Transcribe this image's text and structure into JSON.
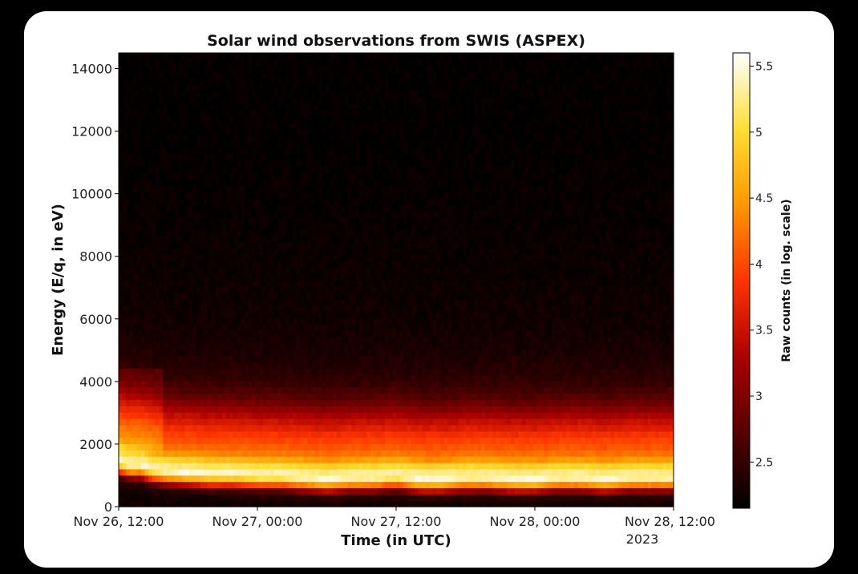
{
  "chart_data": {
    "type": "heatmap",
    "title": "Solar wind observations from SWIS (ASPEX)",
    "xlabel": "Time (in UTC)",
    "ylabel": "Energy (E/q, in eV)",
    "x_tick_labels": [
      "Nov 26, 12:00",
      "Nov 27, 00:00",
      "Nov 27, 12:00",
      "Nov 28, 00:00",
      "Nov 28, 12:00"
    ],
    "x_tick_hours": [
      0,
      12,
      24,
      36,
      48
    ],
    "x_offset_label": "2023",
    "x_range_hours": [
      0,
      48
    ],
    "y_ticks": [
      0,
      2000,
      4000,
      6000,
      8000,
      10000,
      12000,
      14000
    ],
    "ylim": [
      0,
      14500
    ],
    "colorbar": {
      "label": "Raw counts (in log. scale)",
      "ticks": [
        2.5,
        3,
        3.5,
        4,
        4.5,
        5,
        5.5
      ],
      "range": [
        2.15,
        5.6
      ],
      "colormap": "afmhot"
    },
    "energy_profile_estimate": {
      "energy_eV": [
        0,
        200,
        400,
        500,
        600,
        800,
        1000,
        1200,
        1400,
        1600,
        1800,
        2000,
        2200,
        2400,
        2600,
        2800,
        3000,
        3200,
        3400,
        3600,
        3800,
        4000,
        4200,
        4500,
        5000,
        6000,
        8000,
        10000,
        12000,
        14500
      ],
      "log_counts": [
        2.25,
        2.3,
        2.45,
        2.7,
        3.4,
        4.6,
        5.5,
        5.2,
        4.9,
        4.4,
        4.2,
        4.05,
        3.95,
        3.8,
        3.6,
        3.45,
        3.25,
        3.05,
        2.85,
        2.7,
        2.6,
        2.5,
        2.45,
        2.38,
        2.32,
        2.26,
        2.22,
        2.2,
        2.18,
        2.18
      ]
    },
    "peak_energy_track_estimate": {
      "time_hours": [
        0,
        1,
        2,
        3,
        4,
        6,
        8,
        10,
        12,
        14,
        16,
        18,
        20,
        22,
        24,
        26,
        28,
        30,
        32,
        34,
        36,
        38,
        40,
        42,
        44,
        46,
        48
      ],
      "peak_energy_eV": [
        1450,
        1350,
        1350,
        1200,
        1150,
        1100,
        1050,
        1050,
        1000,
        1000,
        950,
        900,
        950,
        950,
        1000,
        900,
        900,
        950,
        950,
        900,
        900,
        950,
        950,
        900,
        950,
        950,
        950
      ]
    }
  }
}
